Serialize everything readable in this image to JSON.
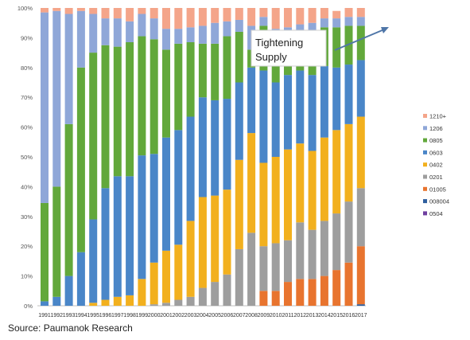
{
  "chart_data": {
    "type": "bar",
    "stacked": "percent",
    "title": "",
    "xlabel": "",
    "ylabel": "",
    "ylim": [
      0,
      100
    ],
    "y_ticks": [
      "0%",
      "10%",
      "20%",
      "30%",
      "40%",
      "50%",
      "60%",
      "70%",
      "80%",
      "90%",
      "100%"
    ],
    "grid": false,
    "legend_position": "right",
    "categories": [
      "1991",
      "1992",
      "1993",
      "1994",
      "1995",
      "1996",
      "1997",
      "1998",
      "1999",
      "2000",
      "2001",
      "2002",
      "2003",
      "2004",
      "2005",
      "2006",
      "2007",
      "2008",
      "2009",
      "2010",
      "2011",
      "2012",
      "2013",
      "2014",
      "2015",
      "2016",
      "2017"
    ],
    "series": [
      {
        "name": "008004",
        "color": "#2e5f9e",
        "values": [
          0,
          0,
          0,
          0,
          0,
          0,
          0,
          0,
          0,
          0,
          0,
          0,
          0,
          0,
          0,
          0,
          0,
          0,
          0,
          0,
          0,
          0,
          0,
          0,
          0,
          0,
          0.5
        ]
      },
      {
        "name": "01005",
        "color": "#e8742f",
        "values": [
          0,
          0,
          0,
          0,
          0,
          0,
          0,
          0,
          0,
          0,
          0,
          0,
          0,
          0,
          0,
          0,
          0,
          0,
          5,
          5,
          8,
          9,
          9,
          10,
          12,
          14.5,
          19.5
        ]
      },
      {
        "name": "0201",
        "color": "#9e9e9e",
        "values": [
          0,
          0,
          0,
          0,
          0,
          0,
          0,
          0,
          0,
          0.5,
          1,
          2,
          3,
          6,
          8,
          10.5,
          19,
          24.5,
          15,
          16,
          14,
          19,
          16.5,
          18.5,
          19,
          20.5,
          19.5
        ]
      },
      {
        "name": "0402",
        "color": "#f2b01e",
        "values": [
          0,
          0,
          0,
          0,
          1,
          2,
          3,
          3.5,
          9,
          14,
          17.5,
          18.5,
          25.5,
          30.5,
          29,
          28.5,
          30,
          33.5,
          28,
          29,
          30.5,
          26.5,
          26.5,
          28,
          28,
          26,
          24
        ]
      },
      {
        "name": "0603",
        "color": "#4a86c8",
        "values": [
          1.5,
          3,
          10,
          18,
          28,
          37.5,
          40.5,
          40,
          41.5,
          36.5,
          38,
          38.5,
          35,
          33.5,
          32,
          30.5,
          26,
          22,
          31,
          25,
          25,
          24.5,
          25.5,
          24,
          21,
          20,
          19
        ]
      },
      {
        "name": "0805",
        "color": "#62a83b",
        "values": [
          33,
          37,
          51,
          62,
          56,
          48,
          43.5,
          45,
          40,
          38.5,
          29.5,
          29,
          25,
          18,
          19,
          21,
          17,
          6,
          15,
          14,
          13,
          12.5,
          14,
          13,
          13.5,
          13,
          11.5
        ]
      },
      {
        "name": "1206",
        "color": "#8fa7d8",
        "values": [
          64,
          59,
          37,
          19,
          13,
          9,
          9.5,
          7,
          7.5,
          7,
          7,
          5,
          5,
          6,
          7,
          5,
          4,
          8,
          3,
          4,
          3,
          3,
          3.5,
          3,
          3,
          3,
          3
        ]
      },
      {
        "name": "1210+",
        "color": "#f4a58a",
        "values": [
          1.5,
          1,
          2,
          1,
          2,
          3.5,
          3.5,
          4.5,
          2,
          3.5,
          7,
          7,
          6.5,
          6,
          5,
          4.5,
          4,
          6,
          3,
          7,
          6.5,
          5.5,
          5,
          3.5,
          2.5,
          3,
          3
        ]
      }
    ],
    "legend_extra": [
      {
        "name": "0504",
        "color": "#6f3fa0"
      }
    ]
  },
  "annotation": {
    "text_line1": "Tightening",
    "text_line2": "Supply"
  },
  "source": "Source: Paumanok Research"
}
